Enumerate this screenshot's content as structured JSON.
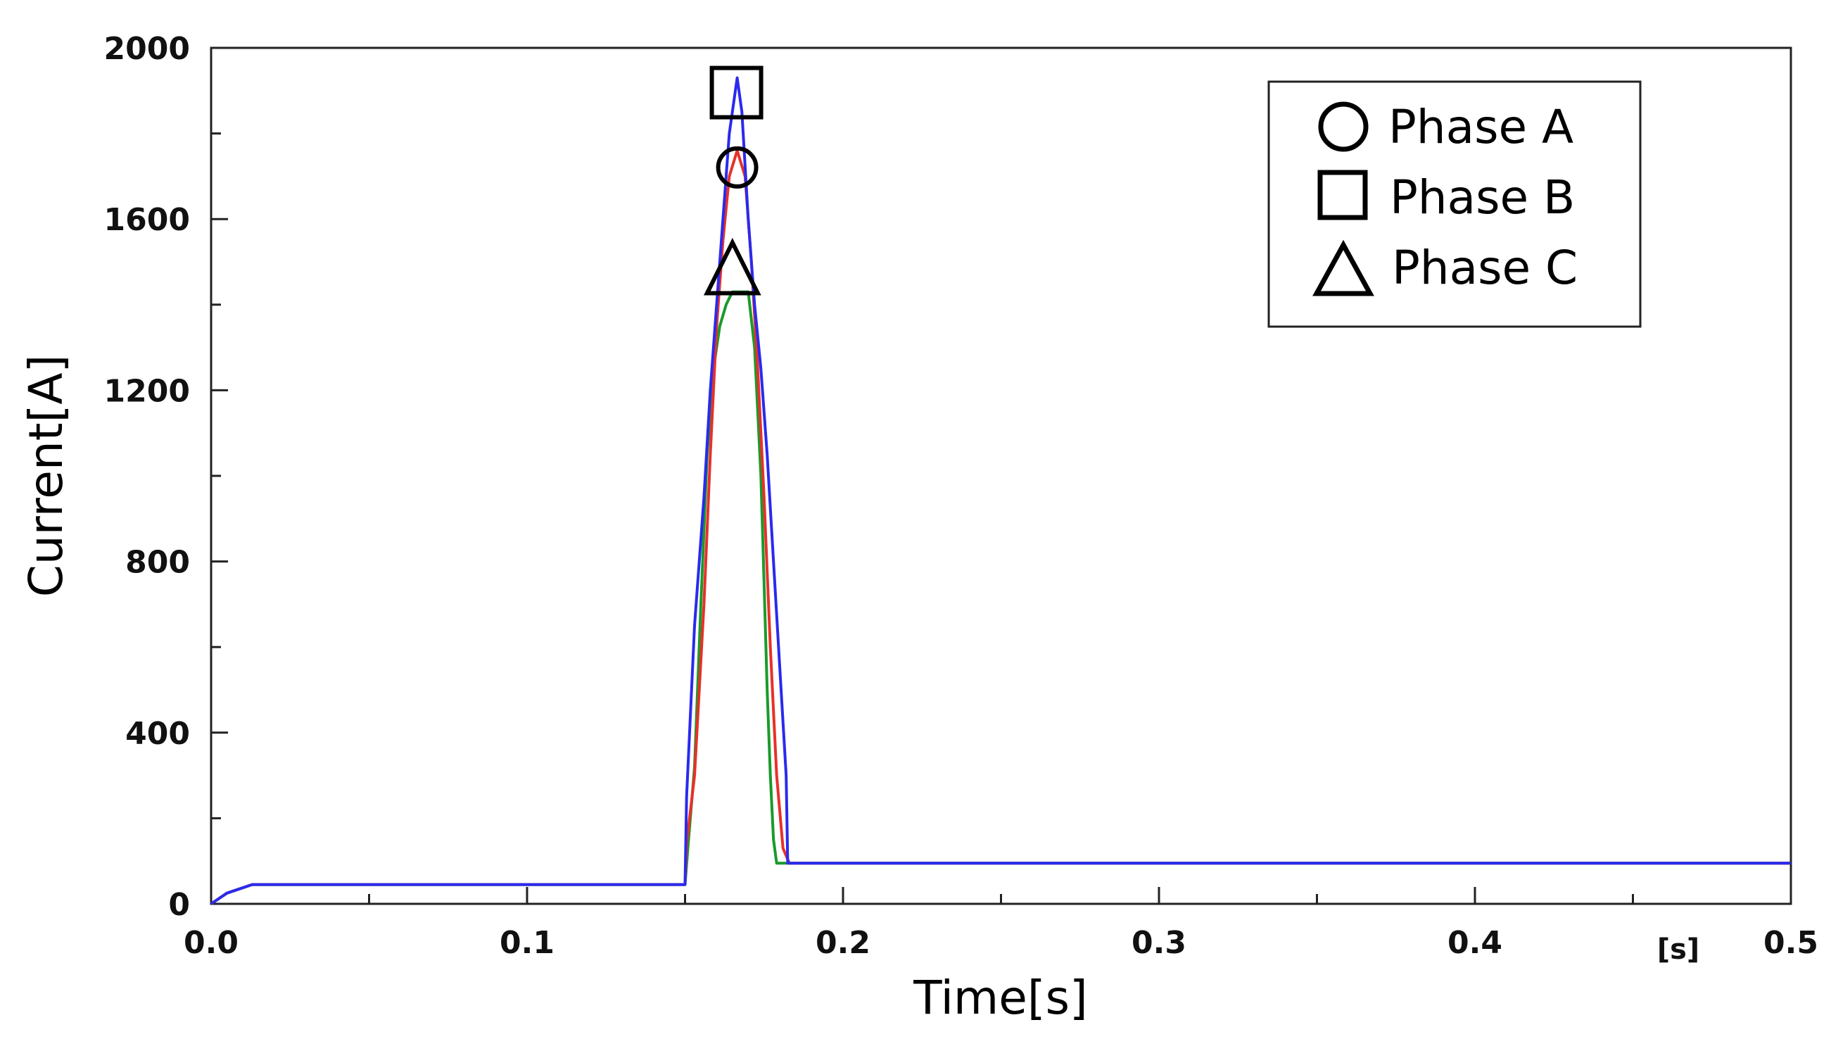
{
  "chart_data": {
    "type": "line",
    "xlabel": "Time[s]",
    "ylabel": "Current[A]",
    "x_unit_label": "[s]",
    "xlim": [
      0,
      0.5
    ],
    "ylim": [
      0,
      2000
    ],
    "x_ticks": [
      "0.0",
      "0.1",
      "0.2",
      "0.3",
      "0.4",
      "0.5"
    ],
    "y_ticks": [
      "0",
      "400",
      "800",
      "1200",
      "1600",
      "2000"
    ],
    "grid": false,
    "legend_position": "top-right",
    "series": [
      {
        "name": "Phase A",
        "marker": "circle",
        "color": "#e8302a",
        "points": [
          [
            0,
            0
          ],
          [
            0.005,
            25
          ],
          [
            0.013,
            45
          ],
          [
            0.15,
            45
          ],
          [
            0.1505,
            140
          ],
          [
            0.153,
            300
          ],
          [
            0.156,
            700
          ],
          [
            0.158,
            1050
          ],
          [
            0.16,
            1350
          ],
          [
            0.162,
            1550
          ],
          [
            0.164,
            1700
          ],
          [
            0.1665,
            1760
          ],
          [
            0.169,
            1700
          ],
          [
            0.171,
            1500
          ],
          [
            0.173,
            1250
          ],
          [
            0.175,
            950
          ],
          [
            0.177,
            600
          ],
          [
            0.179,
            300
          ],
          [
            0.181,
            130
          ],
          [
            0.183,
            95
          ],
          [
            0.5,
            95
          ]
        ]
      },
      {
        "name": "Phase B",
        "marker": "square",
        "color": "#2a2aee",
        "points": [
          [
            0,
            0
          ],
          [
            0.005,
            25
          ],
          [
            0.013,
            45
          ],
          [
            0.15,
            45
          ],
          [
            0.1505,
            250
          ],
          [
            0.153,
            650
          ],
          [
            0.156,
            950
          ],
          [
            0.158,
            1200
          ],
          [
            0.16,
            1400
          ],
          [
            0.162,
            1600
          ],
          [
            0.164,
            1800
          ],
          [
            0.1665,
            1930
          ],
          [
            0.168,
            1850
          ],
          [
            0.17,
            1600
          ],
          [
            0.172,
            1400
          ],
          [
            0.174,
            1250
          ],
          [
            0.176,
            1050
          ],
          [
            0.178,
            800
          ],
          [
            0.18,
            550
          ],
          [
            0.182,
            300
          ],
          [
            0.1825,
            95
          ],
          [
            0.5,
            95
          ]
        ]
      },
      {
        "name": "Phase C",
        "marker": "triangle",
        "color": "#1a9a2a",
        "points": [
          [
            0,
            0
          ],
          [
            0.005,
            25
          ],
          [
            0.013,
            45
          ],
          [
            0.15,
            45
          ],
          [
            0.151,
            140
          ],
          [
            0.153,
            320
          ],
          [
            0.155,
            700
          ],
          [
            0.157,
            1050
          ],
          [
            0.159,
            1250
          ],
          [
            0.161,
            1350
          ],
          [
            0.163,
            1400
          ],
          [
            0.165,
            1430
          ],
          [
            0.17,
            1430
          ],
          [
            0.172,
            1300
          ],
          [
            0.174,
            1000
          ],
          [
            0.175,
            750
          ],
          [
            0.176,
            500
          ],
          [
            0.177,
            300
          ],
          [
            0.178,
            150
          ],
          [
            0.179,
            95
          ],
          [
            0.5,
            95
          ]
        ]
      }
    ]
  }
}
